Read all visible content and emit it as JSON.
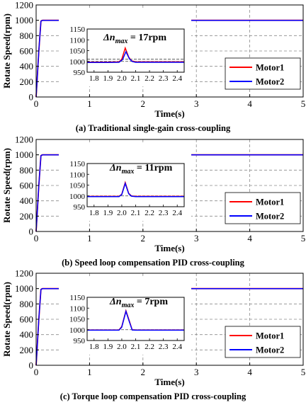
{
  "chart_data": [
    {
      "type": "line",
      "caption": "(a) Traditional single-gain cross-coupling",
      "xlabel": "Time(s)",
      "ylabel": "Rotate Speed(rpm)",
      "xlim": [
        0,
        5
      ],
      "ylim": [
        0,
        1200
      ],
      "xticks": [
        0,
        1,
        2,
        3,
        4,
        5
      ],
      "yticks": [
        0,
        200,
        400,
        600,
        800,
        1000,
        1200
      ],
      "grid": true,
      "legend_position": "bottom-right",
      "series": [
        {
          "name": "Motor1",
          "color": "#ff0000",
          "x": [
            0,
            0.05,
            0.09,
            0.12,
            2.0,
            2.025,
            2.05,
            2.08,
            5
          ],
          "y": [
            0,
            600,
            990,
            1000,
            1000,
            1060,
            1010,
            1000,
            1000
          ]
        },
        {
          "name": "Motor2",
          "color": "#0000ff",
          "x": [
            0,
            0.05,
            0.09,
            0.12,
            2.0,
            2.03,
            2.055,
            2.08,
            5
          ],
          "y": [
            0,
            600,
            990,
            1000,
            1000,
            1050,
            1005,
            1000,
            1000
          ]
        }
      ],
      "inset": {
        "annotation": "Δn_max = 17rpm",
        "xlim": [
          1.75,
          2.45
        ],
        "ylim": [
          950,
          1150
        ],
        "xticks": [
          1.8,
          1.9,
          2.0,
          2.1,
          2.2,
          2.3,
          2.4
        ],
        "yticks": [
          950,
          1000,
          1050,
          1100,
          1150
        ],
        "reference_lines": [
          1000,
          1010
        ],
        "series": [
          {
            "name": "Motor1",
            "x": [
              1.75,
              1.9,
              1.98,
              2.0,
              2.025,
              2.05,
              2.07,
              2.1,
              2.45
            ],
            "y": [
              997,
              997,
              998,
              1010,
              1062,
              1020,
              1003,
              998,
              998
            ]
          },
          {
            "name": "Motor2",
            "x": [
              1.75,
              1.9,
              1.98,
              2.005,
              2.03,
              2.055,
              2.075,
              2.1,
              2.45
            ],
            "y": [
              995,
              995,
              996,
              1008,
              1045,
              1012,
              1000,
              996,
              996
            ]
          }
        ]
      }
    },
    {
      "type": "line",
      "caption": "(b) Speed loop compensation PID cross-coupling",
      "xlabel": "Time(s)",
      "ylabel": "Rotate Speed(rpm)",
      "xlim": [
        0,
        5
      ],
      "ylim": [
        0,
        1200
      ],
      "xticks": [
        0,
        1,
        2,
        3,
        4,
        5
      ],
      "yticks": [
        0,
        200,
        400,
        600,
        800,
        1000,
        1200
      ],
      "grid": true,
      "legend_position": "bottom-right",
      "series": [
        {
          "name": "Motor1",
          "color": "#ff0000",
          "x": [
            0,
            0.05,
            0.09,
            0.12,
            2.0,
            2.025,
            2.05,
            2.08,
            5
          ],
          "y": [
            0,
            600,
            990,
            1000,
            1000,
            1060,
            1008,
            1000,
            1000
          ]
        },
        {
          "name": "Motor2",
          "color": "#0000ff",
          "x": [
            0,
            0.05,
            0.09,
            0.12,
            2.0,
            2.025,
            2.05,
            2.08,
            5
          ],
          "y": [
            0,
            600,
            990,
            1000,
            1000,
            1058,
            1006,
            1000,
            1000
          ]
        }
      ],
      "inset": {
        "annotation": "Δn_max = 11rpm",
        "xlim": [
          1.75,
          2.45
        ],
        "ylim": [
          950,
          1150
        ],
        "xticks": [
          1.8,
          1.9,
          2.0,
          2.1,
          2.2,
          2.3,
          2.4
        ],
        "yticks": [
          950,
          1000,
          1050,
          1100,
          1150
        ],
        "reference_lines": [
          1000
        ],
        "series": [
          {
            "name": "Motor1",
            "x": [
              1.75,
              1.9,
              1.98,
              2.0,
              2.025,
              2.05,
              2.07,
              2.1,
              2.45
            ],
            "y": [
              998,
              998,
              998,
              1008,
              1062,
              1012,
              1000,
              998,
              998
            ]
          },
          {
            "name": "Motor2",
            "x": [
              1.75,
              1.9,
              1.98,
              2.0,
              2.025,
              2.05,
              2.07,
              2.1,
              2.45
            ],
            "y": [
              997,
              997,
              997,
              1006,
              1058,
              1010,
              999,
              997,
              997
            ]
          }
        ]
      }
    },
    {
      "type": "line",
      "caption": "(c) Torque loop compensation PID cross-coupling",
      "xlabel": "Time(s)",
      "ylabel": "Rotate Speed(rpm)",
      "xlim": [
        0,
        5
      ],
      "ylim": [
        0,
        1200
      ],
      "xticks": [
        0,
        1,
        2,
        3,
        4,
        5
      ],
      "yticks": [
        0,
        200,
        400,
        600,
        800,
        1000,
        1200
      ],
      "grid": true,
      "legend_position": "bottom-right",
      "series": [
        {
          "name": "Motor1",
          "color": "#ff0000",
          "x": [
            0,
            0.05,
            0.09,
            0.12,
            2.0,
            2.03,
            2.07,
            2.1,
            5
          ],
          "y": [
            0,
            600,
            990,
            1000,
            1000,
            1085,
            1005,
            1000,
            1000
          ]
        },
        {
          "name": "Motor2",
          "color": "#0000ff",
          "x": [
            0,
            0.05,
            0.09,
            0.12,
            2.0,
            2.03,
            2.07,
            2.1,
            5
          ],
          "y": [
            0,
            600,
            990,
            1000,
            1000,
            1085,
            1004,
            1000,
            1000
          ]
        }
      ],
      "inset": {
        "annotation": "Δn_max = 7rpm",
        "xlim": [
          1.75,
          2.45
        ],
        "ylim": [
          950,
          1150
        ],
        "xticks": [
          1.8,
          1.9,
          2.0,
          2.1,
          2.2,
          2.3,
          2.4
        ],
        "yticks": [
          950,
          1000,
          1050,
          1100,
          1150
        ],
        "reference_lines": [
          1000
        ],
        "series": [
          {
            "name": "Motor1",
            "x": [
              1.75,
              1.9,
              1.98,
              2.0,
              2.03,
              2.055,
              2.075,
              2.1,
              2.45
            ],
            "y": [
              999,
              999,
              999,
              1015,
              1088,
              1040,
              1000,
              999,
              999
            ]
          },
          {
            "name": "Motor2",
            "x": [
              1.75,
              1.9,
              1.98,
              2.0,
              2.03,
              2.055,
              2.075,
              2.1,
              2.45
            ],
            "y": [
              998,
              998,
              998,
              1012,
              1085,
              1036,
              999,
              998,
              998
            ]
          }
        ]
      }
    }
  ]
}
